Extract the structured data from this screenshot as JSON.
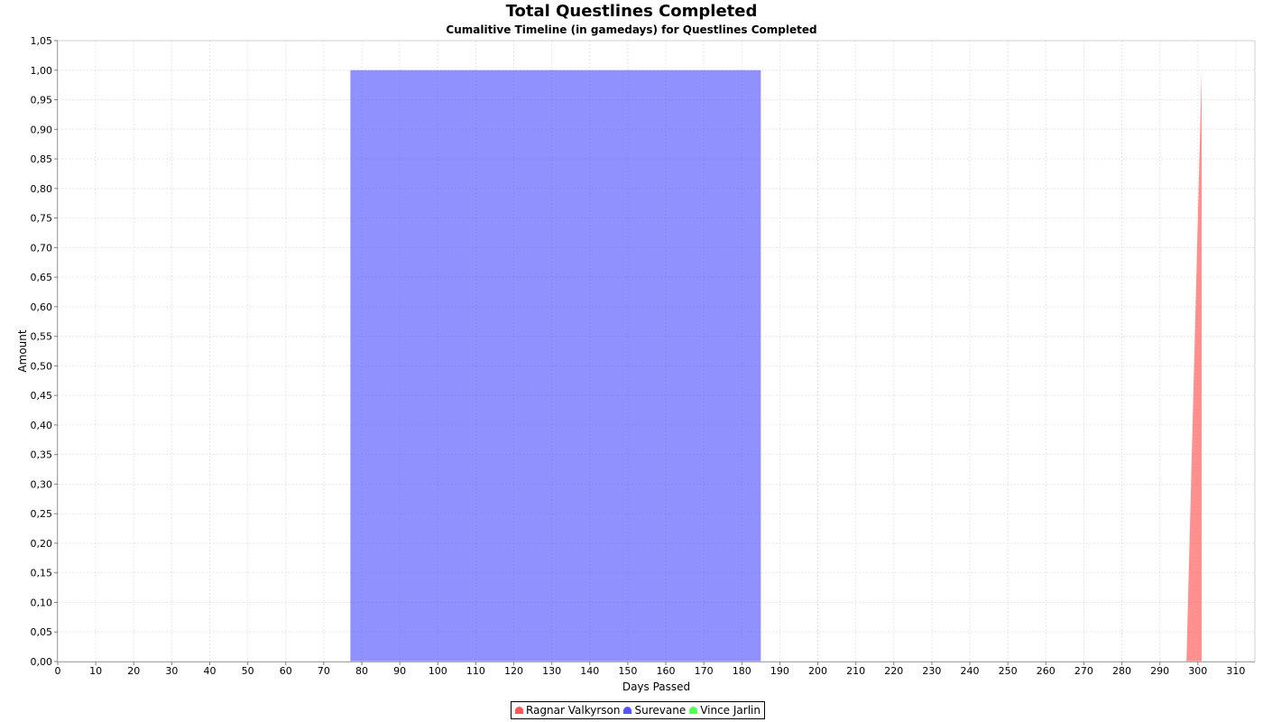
{
  "chart_data": {
    "type": "area",
    "title": "Total Questlines Completed",
    "subtitle": "Cumalitive Timeline (in gamedays) for Questlines Completed",
    "xlabel": "Days Passed",
    "ylabel": "Amount",
    "xlim": [
      0,
      315
    ],
    "ylim": [
      0,
      1.05
    ],
    "x_ticks": [
      "0",
      "10",
      "20",
      "30",
      "40",
      "50",
      "60",
      "70",
      "80",
      "90",
      "100",
      "110",
      "120",
      "130",
      "140",
      "150",
      "160",
      "170",
      "180",
      "190",
      "200",
      "210",
      "220",
      "230",
      "240",
      "250",
      "260",
      "270",
      "280",
      "290",
      "300",
      "310"
    ],
    "x_tick_values": [
      0,
      10,
      20,
      30,
      40,
      50,
      60,
      70,
      80,
      90,
      100,
      110,
      120,
      130,
      140,
      150,
      160,
      170,
      180,
      190,
      200,
      210,
      220,
      230,
      240,
      250,
      260,
      270,
      280,
      290,
      300,
      310
    ],
    "y_ticks": [
      "0,00",
      "0,05",
      "0,10",
      "0,15",
      "0,20",
      "0,25",
      "0,30",
      "0,35",
      "0,40",
      "0,45",
      "0,50",
      "0,55",
      "0,60",
      "0,65",
      "0,70",
      "0,75",
      "0,80",
      "0,85",
      "0,90",
      "0,95",
      "1,00",
      "1,05"
    ],
    "y_tick_values": [
      0,
      0.05,
      0.1,
      0.15,
      0.2,
      0.25,
      0.3,
      0.35,
      0.4,
      0.45,
      0.5,
      0.55,
      0.6,
      0.65,
      0.7,
      0.75,
      0.8,
      0.85,
      0.9,
      0.95,
      1.0,
      1.05
    ],
    "grid": true,
    "legend_position": "bottom",
    "series": [
      {
        "name": "Ragnar Valkyrson",
        "color": "#ff5555",
        "points": [
          [
            0,
            0
          ],
          [
            297,
            0
          ],
          [
            301,
            1
          ],
          [
            301,
            0
          ],
          [
            315,
            0
          ]
        ]
      },
      {
        "name": "Surevane",
        "color": "#5555ff",
        "points": [
          [
            0,
            0
          ],
          [
            77,
            0
          ],
          [
            77,
            1
          ],
          [
            185,
            1
          ],
          [
            185,
            0
          ],
          [
            315,
            0
          ]
        ]
      },
      {
        "name": "Vince Jarlin",
        "color": "#55ff55",
        "points": [
          [
            0,
            0
          ],
          [
            315,
            0
          ]
        ]
      }
    ]
  }
}
